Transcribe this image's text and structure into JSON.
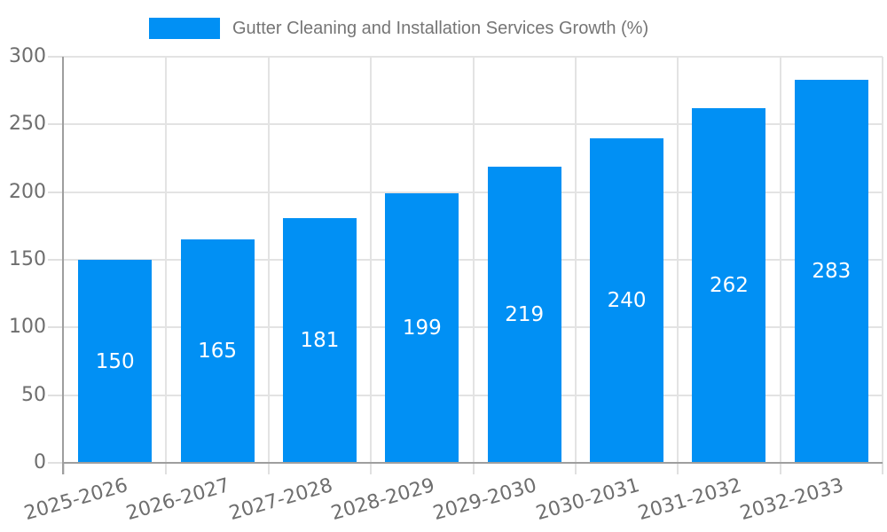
{
  "chart_data": {
    "type": "bar",
    "title": "Gutter Cleaning and Installation Services Growth (%)",
    "categories": [
      "2025-2026",
      "2026-2027",
      "2027-2028",
      "2028-2029",
      "2029-2030",
      "2030-2031",
      "2031-2032",
      "2032-2033"
    ],
    "values": [
      150,
      165,
      181,
      199,
      219,
      240,
      262,
      283
    ],
    "xlabel": "",
    "ylabel": "",
    "ylim": [
      0,
      300
    ],
    "yticks": [
      0,
      50,
      100,
      150,
      200,
      250,
      300
    ],
    "grid": true,
    "legend_position": "top-center",
    "value_labels": "centered-inside-bars",
    "bar_color": "#0190f4",
    "value_label_color": "#ffffff",
    "grid_color": "#e3e3e3",
    "axis_color": "#9e9e9e",
    "tick_label_color": "#6e6e6e",
    "legend_text_color": "#757575"
  }
}
